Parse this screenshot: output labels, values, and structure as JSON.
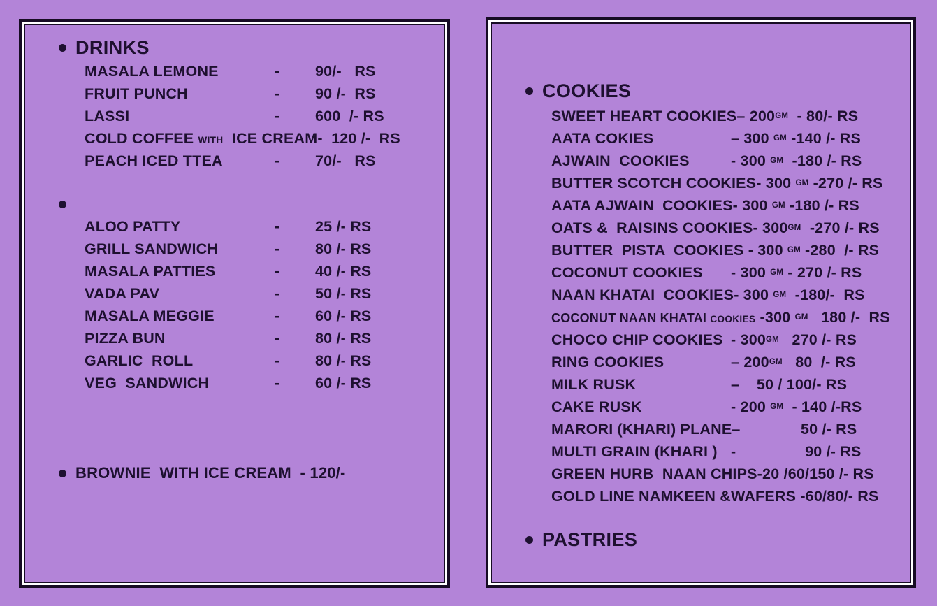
{
  "colors": {
    "bg": "#b384d8",
    "ink": "#1e1030",
    "line": "#170c24",
    "gap": "#ffffff"
  },
  "left": {
    "drinks_header": "DRINKS",
    "drinks": [
      {
        "name": "MASALA LEMONE",
        "sep": "-",
        "price": "90/-   RS"
      },
      {
        "name": "FRUIT PUNCH",
        "sep": "-",
        "price": "90 /-  RS"
      },
      {
        "name": "LASSI",
        "sep": "-",
        "price": "600  /- RS"
      },
      {
        "name": "COLD COFFEE ",
        "small": "WITH",
        "name2": "  ICE CREAM-",
        "price": "  120 /-  RS",
        "cls": "wide"
      },
      {
        "name": "PEACH ICED TTEA",
        "sep": "-",
        "price": "70/-   RS"
      }
    ],
    "snacks": [
      {
        "name": "ALOO PATTY",
        "sep": "-",
        "price": "25 /- RS"
      },
      {
        "name": "GRILL SANDWICH",
        "sep": "-",
        "price": "80 /- RS"
      },
      {
        "name": "MASALA PATTIES",
        "sep": "-",
        "price": "40 /- RS"
      },
      {
        "name": "VADA PAV",
        "sep": "-",
        "price": "50 /- RS"
      },
      {
        "name": "MASALA MEGGIE",
        "sep": "-",
        "price": "60 /- RS"
      },
      {
        "name": "PIZZA BUN",
        "sep": "-",
        "price": "80 /- RS"
      },
      {
        "name": "GARLIC  ROLL",
        "sep": "-",
        "price": "80 /- RS"
      },
      {
        "name": "VEG  SANDWICH",
        "sep": "-",
        "price": "60 /- RS"
      }
    ],
    "brownie_line": "BROWNIE  WITH ICE CREAM  - 120/-"
  },
  "right": {
    "cookies_header": "COOKIES",
    "cookies": [
      {
        "name": "SWEET HEART COOKIES",
        "rest1": "– 200",
        "unit": "GM",
        "rest2": "  - 80/- RS"
      },
      {
        "name": "AATA COKIES",
        "rest1": "– 300 ",
        "unit": "GM",
        "rest2": " -140 /- RS"
      },
      {
        "name": "AJWAIN  COOKIES",
        "rest1": "- 300 ",
        "unit": "GM",
        "rest2": "  -180 /- RS"
      },
      {
        "name": "BUTTER SCOTCH COOKIES-",
        "cls": "wide",
        "rest1": " 300 ",
        "unit": "GM",
        "rest2": " -270 /- RS"
      },
      {
        "name": "AATA AJWAIN  COOKIES",
        "rest1": "- 300 ",
        "unit": "GM",
        "rest2": " -180 /- RS"
      },
      {
        "name": "OATS &  RAISINS COOKIES-",
        "cls": "wide",
        "rest1": " 300",
        "unit": "GM",
        "rest2": "  -270 /- RS"
      },
      {
        "name": "BUTTER  PISTA  COOKIES ",
        "cls": "wide",
        "rest1": "- 300 ",
        "unit": "GM",
        "rest2": " -280  /- RS"
      },
      {
        "name": "COCONUT COOKIES",
        "rest1": "- 300 ",
        "unit": "GM",
        "rest2": " - 270 /- RS"
      },
      {
        "name": "NAAN KHATAI  COOKIES",
        "rest1": "- 300 ",
        "unit": "GM",
        "rest2": "  -180/-  RS"
      },
      {
        "name": "COCONUT NAAN KHATAI ",
        "small": "COOKIES",
        "cls": "wide smallname",
        "rest1": " -300 ",
        "unit": "GM",
        "rest2": "   180 /-  RS"
      },
      {
        "name": "CHOCO CHIP COOKIES",
        "rest1": "- 300",
        "unit": "GM",
        "rest2": "   270 /- RS"
      },
      {
        "name": "RING COOKIES",
        "rest1": "– 200",
        "unit": "GM",
        "rest2": "   80  /- RS"
      },
      {
        "name": "MILK RUSK",
        "rest1": "–    50 / 100/- RS"
      },
      {
        "name": "CAKE RUSK",
        "rest1": "- 200 ",
        "unit": "GM",
        "rest2": "  - 140 /-RS"
      },
      {
        "name": "MARORI (KHARI) PLANE",
        "rest1": "–              50 /- RS"
      },
      {
        "name": "MULTI GRAIN (KHARI )",
        "rest1": "-                90 /- RS"
      },
      {
        "name": "GREEN HURB  NAAN CHIPS-20 /60/150 /- RS",
        "cls": "wide"
      },
      {
        "name": "GOLD LINE NAMKEEN &WAFERS -60/80/- RS",
        "cls": "wide"
      }
    ],
    "pastries_header": "PASTRIES"
  }
}
